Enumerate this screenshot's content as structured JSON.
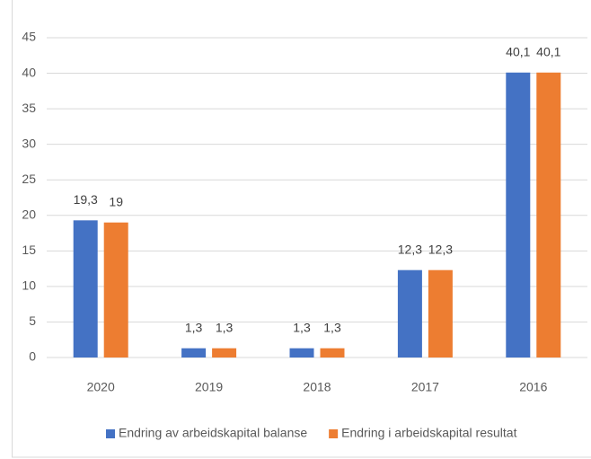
{
  "chart_data": {
    "type": "bar",
    "categories": [
      "2020",
      "2019",
      "2018",
      "2017",
      "2016"
    ],
    "series": [
      {
        "name": "Endring av arbeidskapital balanse",
        "color": "#4472c4",
        "values": [
          19.3,
          1.3,
          1.3,
          12.3,
          40.1
        ],
        "value_labels": [
          "19,3",
          "1,3",
          "1,3",
          "12,3",
          "40,1"
        ]
      },
      {
        "name": "Endring i arbeidskapital resultat",
        "color": "#ed7d31",
        "values": [
          19,
          1.3,
          1.3,
          12.3,
          40.1
        ],
        "value_labels": [
          "19",
          "1,3",
          "1,3",
          "12,3",
          "40,1"
        ]
      }
    ],
    "ylim": [
      0,
      45
    ],
    "yticks": [
      0,
      5,
      10,
      15,
      20,
      25,
      30,
      35,
      40,
      45
    ],
    "grid": true,
    "legend": "bottom"
  }
}
